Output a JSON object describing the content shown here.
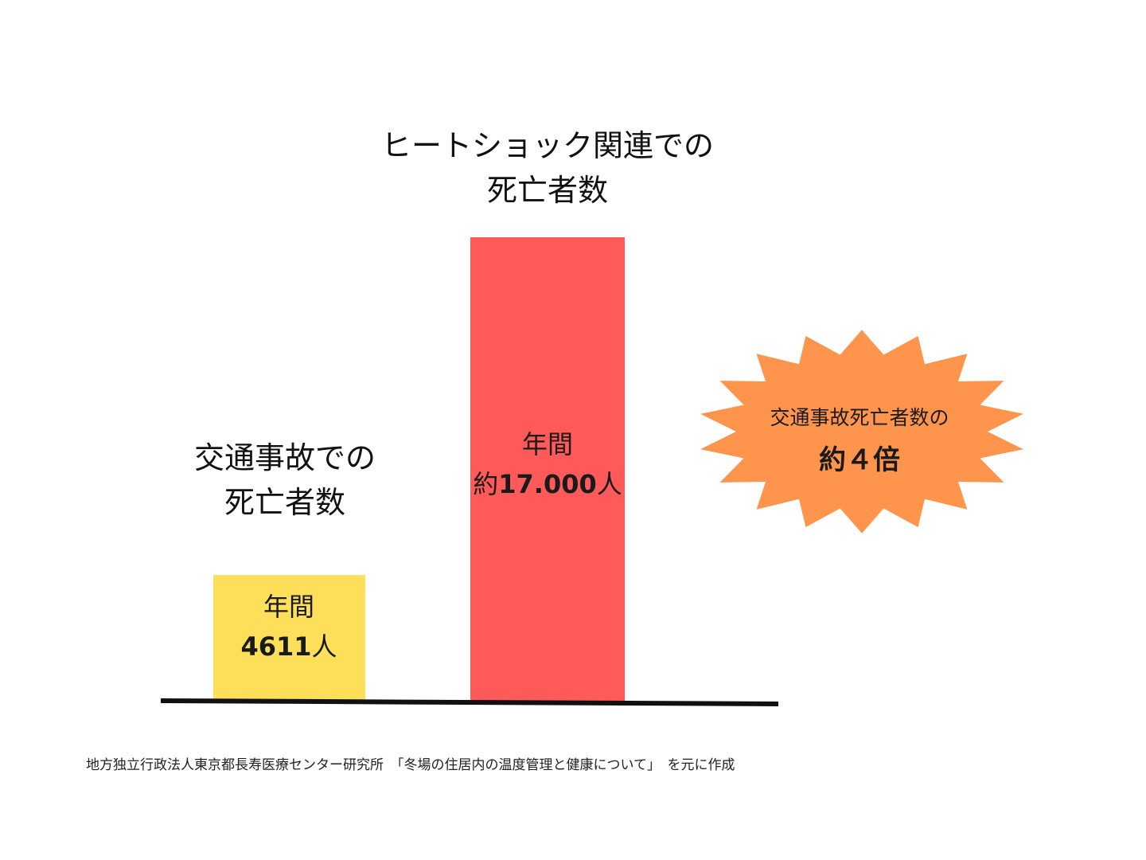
{
  "colors": {
    "traffic_bar": "#FDDF5A",
    "heatshock_bar": "#FF5A5A",
    "burst": "#FF944D",
    "baseline": "#111111"
  },
  "chart_data": {
    "type": "bar",
    "categories": [
      "交通事故での死亡者数",
      "ヒートショック関連での死亡者数"
    ],
    "values": [
      4611,
      17000
    ],
    "bars": [
      {
        "title_lines": [
          "交通事故での",
          "死亡者数"
        ],
        "period_label": "年間",
        "value_prefix": "",
        "value_text": "4611",
        "value_suffix": "人",
        "value": 4611,
        "color": "#FDDF5A"
      },
      {
        "title_lines": [
          "ヒートショック関連での",
          "死亡者数"
        ],
        "period_label": "年間",
        "value_prefix": "約",
        "value_text": "17.000",
        "value_suffix": "人",
        "value": 17000,
        "color": "#FF5A5A"
      }
    ],
    "ylim": [
      0,
      17000
    ],
    "grid": false,
    "legend": "none",
    "annotation": {
      "line1": "交通事故死亡者数の",
      "line2": "約４倍"
    }
  },
  "source_note": "地方独立行政法人東京都長寿医療センター研究所　「冬場の住居内の温度管理と健康について」　を元に作成"
}
